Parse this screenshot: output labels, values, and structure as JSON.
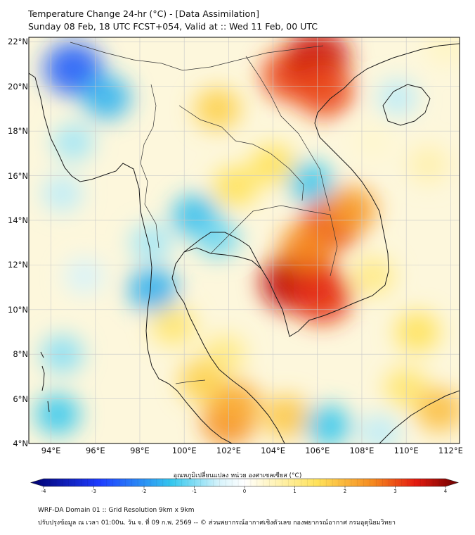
{
  "header": {
    "title_line1": "Temperature Change 24-hr (°C) - [Data Assimilation]",
    "title_line2": "Sunday 08 Feb, 18 UTC FCST+054, Valid at :: Wed 11 Feb, 00 UTC"
  },
  "map": {
    "lat_labels": [
      "22°N",
      "20°N",
      "18°N",
      "16°N",
      "14°N",
      "12°N",
      "10°N",
      "8°N",
      "6°N",
      "4°N"
    ],
    "lon_labels": [
      "94°E",
      "96°E",
      "98°E",
      "100°E",
      "102°E",
      "104°E",
      "106°E",
      "108°E",
      "110°E",
      "112°E"
    ],
    "extent": {
      "lon_min": 93,
      "lon_max": 112.4,
      "lat_min": 4,
      "lat_max": 22.2
    },
    "anomalies": [
      {
        "lon": 95.0,
        "lat": 20.8,
        "value": -2.6
      },
      {
        "lon": 96.5,
        "lat": 19.5,
        "value": -1.4
      },
      {
        "lon": 95.0,
        "lat": 17.5,
        "value": -0.6
      },
      {
        "lon": 101.5,
        "lat": 19.0,
        "value": 1.2
      },
      {
        "lon": 104.8,
        "lat": 20.5,
        "value": 2.6
      },
      {
        "lon": 106.0,
        "lat": 21.3,
        "value": 3.2
      },
      {
        "lon": 106.3,
        "lat": 19.8,
        "value": 2.6
      },
      {
        "lon": 104.0,
        "lat": 16.5,
        "value": 1.0
      },
      {
        "lon": 102.3,
        "lat": 15.5,
        "value": 1.0
      },
      {
        "lon": 105.7,
        "lat": 15.7,
        "value": -1.0
      },
      {
        "lon": 100.5,
        "lat": 14.2,
        "value": -1.2
      },
      {
        "lon": 101.5,
        "lat": 13.2,
        "value": -0.8
      },
      {
        "lon": 105.5,
        "lat": 11.5,
        "value": 3.0
      },
      {
        "lon": 104.9,
        "lat": 11.2,
        "value": 3.3
      },
      {
        "lon": 106.2,
        "lat": 10.6,
        "value": 2.8
      },
      {
        "lon": 106.6,
        "lat": 13.8,
        "value": 2.7
      },
      {
        "lon": 105.5,
        "lat": 12.8,
        "value": 2.0
      },
      {
        "lon": 107.5,
        "lat": 14.5,
        "value": 1.8
      },
      {
        "lon": 98.6,
        "lat": 10.9,
        "value": -1.5
      },
      {
        "lon": 98.5,
        "lat": 13.0,
        "value": -0.6
      },
      {
        "lon": 94.5,
        "lat": 15.2,
        "value": -0.5
      },
      {
        "lon": 101.8,
        "lat": 8.0,
        "value": 0.8
      },
      {
        "lon": 102.0,
        "lat": 5.0,
        "value": 2.0
      },
      {
        "lon": 102.3,
        "lat": 5.8,
        "value": 1.6
      },
      {
        "lon": 100.8,
        "lat": 6.8,
        "value": 1.2
      },
      {
        "lon": 99.5,
        "lat": 9.3,
        "value": 0.9
      },
      {
        "lon": 104.6,
        "lat": 5.2,
        "value": 1.3
      },
      {
        "lon": 106.5,
        "lat": 4.8,
        "value": -1.0
      },
      {
        "lon": 108.8,
        "lat": 4.5,
        "value": -0.5
      },
      {
        "lon": 110.5,
        "lat": 9.0,
        "value": 1.0
      },
      {
        "lon": 110.0,
        "lat": 6.5,
        "value": 0.9
      },
      {
        "lon": 111.5,
        "lat": 5.5,
        "value": 1.4
      },
      {
        "lon": 108.5,
        "lat": 11.5,
        "value": 0.8
      },
      {
        "lon": 94.5,
        "lat": 8.0,
        "value": -0.7
      },
      {
        "lon": 94.3,
        "lat": 5.3,
        "value": -1.0
      },
      {
        "lon": 95.5,
        "lat": 11.5,
        "value": -0.4
      },
      {
        "lon": 109.6,
        "lat": 19.5,
        "value": -0.5
      },
      {
        "lon": 111.0,
        "lat": 16.5,
        "value": 0.6
      },
      {
        "lon": 111.8,
        "lat": 21.8,
        "value": 0.5
      },
      {
        "lon": 108.5,
        "lat": 17.5,
        "value": 0.4
      }
    ]
  },
  "colorbar": {
    "title": "อุณหภูมิเปลี่ยนแปลง หน่วย องศาเซลเซียส (°C)",
    "min": -4,
    "max": 4,
    "ticks": [
      "-4",
      "-3",
      "-2",
      "-1",
      "0",
      "1",
      "2",
      "3",
      "4"
    ],
    "colors": {
      "deep_blue": "#00006e",
      "blue": "#1e5cff",
      "cyan": "#35c8ee",
      "white": "#ffffff",
      "yellow": "#ffe25a",
      "orange": "#f58a1f",
      "red": "#e41b10",
      "dark_red": "#6e0000"
    }
  },
  "footer": {
    "line1": "WRF-DA Domain 01 :: Grid Resolution 9km x 9km",
    "line2": "ปรับปรุงข้อมูล ณ เวลา 01:00น. วัน จ. ที่ 09 ก.พ. 2569 -- © ส่วนพยากรณ์อากาศเชิงตัวเลข กองพยากรณ์อากาศ กรมอุตุนิยมวิทยา"
  }
}
